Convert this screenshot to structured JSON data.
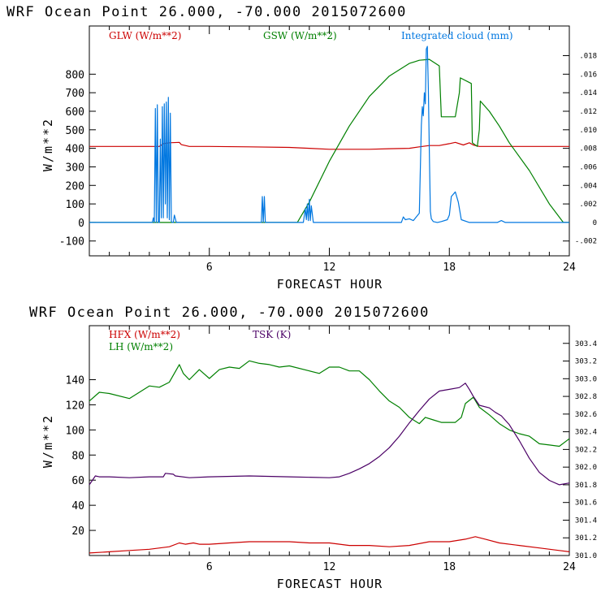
{
  "chart_data": [
    {
      "type": "line",
      "title": "WRF   Ocean Point   26.000, -70.000  2015072600",
      "xlabel": "FORECAST HOUR",
      "ylabel": "W/m**2",
      "xlim": [
        0,
        24
      ],
      "ylim": [
        -180,
        1060
      ],
      "y2lim": [
        -0.0036,
        0.0212
      ],
      "x_ticks": [
        "6",
        "12",
        "18",
        "24"
      ],
      "y_ticks": [
        "-100",
        "0",
        "100",
        "200",
        "300",
        "400",
        "500",
        "600",
        "700",
        "800"
      ],
      "y2_ticks": [
        "-.002",
        "0",
        ".002",
        ".004",
        ".006",
        ".008",
        ".010",
        ".012",
        ".014",
        ".016",
        ".018"
      ],
      "legend": [
        "GLW (W/m**2)",
        "GSW (W/m**2)",
        "Integrated cloud (mm)"
      ],
      "series": [
        {
          "name": "GLW (W/m**2)",
          "color": "#cc0000",
          "axis": "left",
          "x": [
            0,
            3.5,
            3.7,
            4.0,
            4.5,
            4.6,
            5.0,
            5.5,
            6,
            8,
            10,
            11,
            12,
            14,
            15,
            16,
            16.5,
            17.0,
            17.5,
            18.0,
            18.3,
            18.7,
            19.0,
            19.2,
            19.5,
            20,
            22,
            24
          ],
          "y": [
            410,
            410,
            425,
            430,
            432,
            420,
            410,
            410,
            410,
            408,
            405,
            400,
            395,
            395,
            398,
            400,
            408,
            415,
            415,
            425,
            432,
            418,
            430,
            418,
            410,
            410,
            410,
            410
          ]
        },
        {
          "name": "GSW (W/m**2)",
          "color": "#008000",
          "axis": "left",
          "x": [
            0,
            10.4,
            11,
            12,
            13,
            14,
            15,
            16,
            16.5,
            17,
            17.5,
            17.6,
            18.3,
            18.5,
            18.55,
            19.1,
            19.15,
            19.4,
            19.5,
            19.55,
            20.0,
            20.5,
            21,
            22,
            23,
            23.7,
            24
          ],
          "y": [
            0,
            0,
            110,
            330,
            520,
            680,
            790,
            858,
            875,
            880,
            845,
            570,
            570,
            700,
            780,
            750,
            430,
            410,
            500,
            655,
            600,
            520,
            430,
            280,
            100,
            0,
            0
          ]
        },
        {
          "name": "Integrated cloud (mm)",
          "color": "#0077e0",
          "axis": "right",
          "x": [
            0,
            3.15,
            3.2,
            3.25,
            3.3,
            3.35,
            3.4,
            3.45,
            3.5,
            3.55,
            3.6,
            3.65,
            3.7,
            3.75,
            3.8,
            3.85,
            3.9,
            3.95,
            4.0,
            4.05,
            4.1,
            4.15,
            4.2,
            4.25,
            4.3,
            4.35,
            4.5,
            4.6,
            4.7,
            4.8,
            8.6,
            8.65,
            8.7,
            8.75,
            8.8,
            8.85,
            8.9,
            10.7,
            10.8,
            10.85,
            10.9,
            10.95,
            11.0,
            11.05,
            11.1,
            11.2,
            15.6,
            15.7,
            15.8,
            16.0,
            16.2,
            16.5,
            16.6,
            16.65,
            16.7,
            16.75,
            16.8,
            16.85,
            16.9,
            16.95,
            17.0,
            17.05,
            17.1,
            17.2,
            17.4,
            17.6,
            17.9,
            18.0,
            18.1,
            18.3,
            18.45,
            18.6,
            19.0,
            20.4,
            20.6,
            20.8,
            24
          ],
          "y": [
            0,
            0,
            0.0005,
            0,
            0.0123,
            0,
            0.0127,
            0,
            0,
            0.009,
            0.0005,
            0.0125,
            0.0005,
            0.0128,
            0.002,
            0.013,
            0.0005,
            0.0135,
            0.0003,
            0.0118,
            0.0001,
            0,
            0,
            0.0008,
            0.0004,
            0,
            0,
            0,
            0,
            0,
            0,
            0.0028,
            0,
            0.0028,
            0,
            0,
            0,
            0,
            0.0015,
            0.0003,
            0.002,
            0.0002,
            0.0025,
            0.0002,
            0.0018,
            0,
            0,
            0.0006,
            0.0003,
            0.0004,
            0.0002,
            0.001,
            0.0105,
            0.0125,
            0.0115,
            0.014,
            0.0128,
            0.0187,
            0.019,
            0.0145,
            0.0078,
            0.0012,
            0.0004,
            0.0001,
            0,
            0.0001,
            0.0003,
            0.0008,
            0.0028,
            0.0033,
            0.0022,
            0.0003,
            0,
            0,
            0.0002,
            0,
            0
          ]
        }
      ]
    },
    {
      "type": "line",
      "title": "WRF   Ocean Point   26.000, -70.000  2015072600",
      "xlabel": "FORECAST HOUR",
      "ylabel": "W/m**2",
      "xlim": [
        0,
        24
      ],
      "ylim": [
        0,
        183
      ],
      "y2lim": [
        301.0,
        303.6
      ],
      "x_ticks": [
        "6",
        "12",
        "18",
        "24"
      ],
      "y_ticks": [
        "20",
        "40",
        "60",
        "80",
        "100",
        "120",
        "140"
      ],
      "y2_ticks": [
        "301.0",
        "301.2",
        "301.4",
        "301.6",
        "301.8",
        "302.0",
        "302.2",
        "302.4",
        "302.6",
        "302.8",
        "303.0",
        "303.2",
        "303.4"
      ],
      "legend": [
        "HFX (W/m**2)",
        "LH  (W/m**2)",
        "TSK (K)"
      ],
      "series": [
        {
          "name": "HFX (W/m**2)",
          "color": "#cc0000",
          "axis": "left",
          "x": [
            0,
            1,
            2,
            3,
            4,
            4.5,
            4.8,
            5.2,
            5.5,
            6,
            7,
            8,
            10,
            11,
            12,
            13,
            14,
            15,
            16,
            17,
            18,
            18.8,
            19.3,
            19.8,
            20.5,
            21.5,
            22.5,
            23.5,
            24
          ],
          "y": [
            2,
            3,
            4,
            5,
            7,
            10,
            9,
            10,
            9,
            9,
            10,
            11,
            11,
            10,
            10,
            8,
            8,
            7,
            8,
            11,
            11,
            13,
            15,
            13,
            10,
            8,
            6,
            4,
            3
          ],
          "print_values": "none"
        },
        {
          "name": "LH  (W/m**2)",
          "color": "#008000",
          "axis": "left",
          "x": [
            0,
            0.5,
            1,
            2,
            2.5,
            3,
            3.5,
            4,
            4.5,
            4.7,
            5.0,
            5.5,
            6,
            6.5,
            7,
            7.5,
            8,
            8.5,
            9,
            9.5,
            10,
            11,
            11.5,
            12,
            12.5,
            13,
            13.5,
            14,
            14.5,
            15,
            15.5,
            16,
            16.5,
            16.8,
            17.2,
            17.6,
            18,
            18.3,
            18.6,
            18.8,
            19.2,
            19.5,
            20,
            20.5,
            21,
            21.5,
            22,
            22.5,
            23,
            23.5,
            24
          ],
          "y": [
            123,
            130,
            129,
            125,
            130,
            135,
            134,
            138,
            152,
            145,
            140,
            148,
            141,
            148,
            150,
            149,
            155,
            153,
            152,
            150,
            151,
            147,
            145,
            150,
            150,
            147,
            147,
            140,
            131,
            123,
            118,
            110,
            105,
            110,
            108,
            106,
            106,
            106,
            110,
            121,
            126,
            118,
            112,
            105,
            100,
            97,
            95,
            89,
            88,
            87,
            93
          ]
        },
        {
          "name": "TSK (K)",
          "color": "#4b0066",
          "axis": "right",
          "x": [
            0,
            0.3,
            0.5,
            1,
            2,
            3,
            3.7,
            3.8,
            4.2,
            4.3,
            5,
            6,
            8,
            10,
            12,
            12.5,
            13,
            13.5,
            14,
            14.5,
            15,
            15.5,
            16,
            16.5,
            17,
            17.5,
            18,
            18.5,
            18.8,
            19.0,
            19.2,
            19.5,
            20,
            20.3,
            20.6,
            21,
            21.5,
            22,
            22.5,
            23,
            23.5,
            24
          ],
          "y": [
            301.8,
            301.9,
            301.89,
            301.89,
            301.88,
            301.89,
            301.89,
            301.93,
            301.92,
            301.9,
            301.88,
            301.89,
            301.9,
            301.89,
            301.88,
            301.89,
            301.93,
            301.98,
            302.04,
            302.12,
            302.22,
            302.35,
            302.5,
            302.64,
            302.77,
            302.86,
            302.88,
            302.9,
            302.95,
            302.88,
            302.8,
            302.7,
            302.67,
            302.62,
            302.58,
            302.48,
            302.3,
            302.1,
            301.94,
            301.85,
            301.8,
            301.82
          ]
        }
      ]
    }
  ]
}
